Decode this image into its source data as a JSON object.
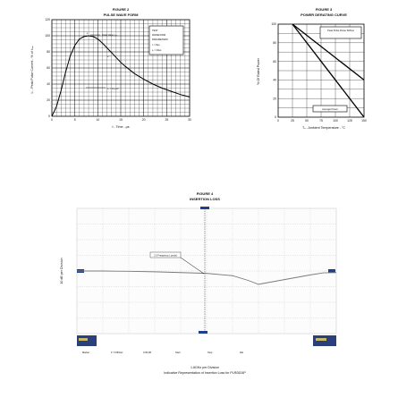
{
  "chart_data": [
    {
      "type": "line",
      "figure_number": "FIGURE 2",
      "title": "PULSE WAVE FORM",
      "xlabel": "t - Time - µs",
      "ylabel": "Iₚ - Peak Pulse Current - % of Iₚₘ",
      "xlim": [
        0,
        30
      ],
      "ylim": [
        0,
        120
      ],
      "x_ticks": [
        "0",
        "5",
        "10",
        "15",
        "20",
        "25",
        "30"
      ],
      "y_ticks": [
        "0",
        "20",
        "40",
        "60",
        "80",
        "100",
        "120"
      ],
      "grid": true,
      "series": [
        {
          "x": [
            0,
            1,
            2,
            3,
            4,
            5,
            6,
            7,
            8,
            9,
            10,
            11,
            12,
            13,
            14,
            15,
            16,
            18,
            20,
            22,
            24,
            26,
            28,
            30
          ],
          "y": [
            0,
            12,
            32,
            55,
            75,
            88,
            96,
            99,
            100,
            99,
            96,
            91,
            85,
            79,
            73,
            67,
            62,
            53,
            46,
            40,
            35,
            31,
            27,
            24
          ]
        }
      ],
      "annotations": {
        "tr_label": "tᵣ",
        "peak_label": "Peak Value Iₚₘ",
        "e_label": "e⁻ᵗ",
        "half_label": "tₚ = 1/Iₚₘ/2",
        "param_box": [
          "TEST",
          "WAVEFORM",
          "PARAMETERS",
          "tᵣ = 8µs",
          "tₚ = 20µs"
        ]
      }
    },
    {
      "type": "line",
      "figure_number": "FIGURE 3",
      "title": "POWER DERATING CURVE",
      "xlabel": "Tₐ - Ambient Temperature - °C",
      "ylabel": "% Of Rated Power",
      "xlim": [
        0,
        150
      ],
      "ylim": [
        0,
        100
      ],
      "x_ticks": [
        "0",
        "25",
        "50",
        "75",
        "100",
        "125",
        "150"
      ],
      "y_ticks": [
        "0",
        "20",
        "40",
        "60",
        "80",
        "100"
      ],
      "grid": true,
      "series": [
        {
          "name": "Peak Pulse Power 8/20µs",
          "x": [
            25,
            150
          ],
          "y": [
            100,
            40
          ]
        },
        {
          "name": "Average Power",
          "x": [
            25,
            150
          ],
          "y": [
            100,
            0
          ]
        }
      ]
    },
    {
      "type": "line",
      "figure_number": "FIGURE 4",
      "title": "INSERTION LOSS",
      "xlabel": "1.6GHz per Division",
      "ylabel": "10 dB per Division",
      "subtitle": "Indicative Representation of Insertion Loss for PLR0524P",
      "x_divisions": 10,
      "y_divisions": 8,
      "grid": true,
      "series": [
        {
          "x": [
            0,
            1,
            2,
            3,
            4,
            5,
            6,
            6.6,
            7,
            7.5,
            8,
            8.5,
            9,
            9.5,
            10
          ],
          "y": [
            0,
            0,
            -0.02,
            -0.05,
            -0.1,
            -0.15,
            -0.3,
            -0.6,
            -0.85,
            -0.7,
            -0.55,
            -0.4,
            -0.25,
            -0.12,
            -0.1
          ]
        }
      ],
      "marker_label": "2.5 Frequency Loss(s)",
      "footer_labels": [
        "Marker",
        "1* 3.05GHz",
        "0.09 dB",
        "Start",
        "Stop",
        "Ref"
      ]
    }
  ]
}
